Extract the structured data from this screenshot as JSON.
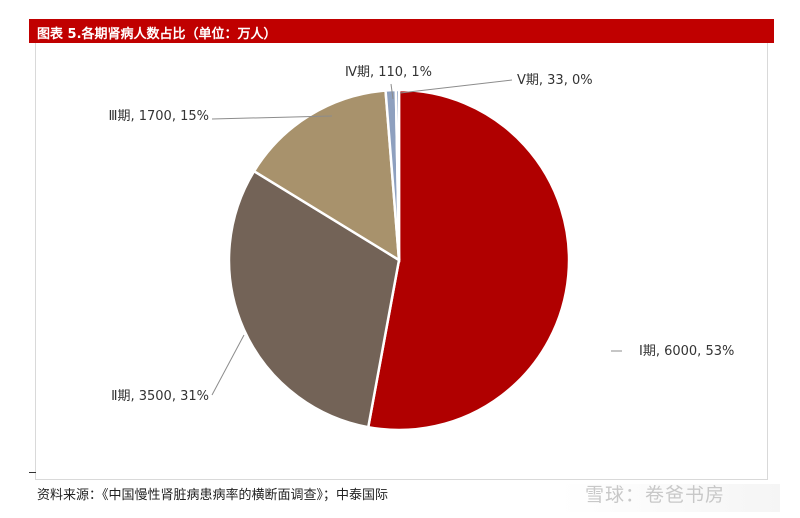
{
  "header": {
    "title": "图表 5.各期肾病人数占比（单位：万人）"
  },
  "chart_data": {
    "type": "pie",
    "title": "图表 5.各期肾病人数占比（单位：万人）",
    "slices": [
      {
        "name": "Ⅰ期",
        "value": 6000,
        "percent": "53%",
        "label": "Ⅰ期, 6000, 53%",
        "color": "#b00000"
      },
      {
        "name": "Ⅱ期",
        "value": 3500,
        "percent": "31%",
        "label": "Ⅱ期, 3500, 31%",
        "color": "#736357"
      },
      {
        "name": "Ⅲ期",
        "value": 1700,
        "percent": "15%",
        "label": "Ⅲ期, 1700, 15%",
        "color": "#a8926c"
      },
      {
        "name": "Ⅳ期",
        "value": 110,
        "percent": "1%",
        "label": "Ⅳ期, 110, 1%",
        "color": "#8ea0bf"
      },
      {
        "name": "Ⅴ期",
        "value": 33,
        "percent": "0%",
        "label": "Ⅴ期, 33, 0%",
        "color": "#5b7aa8"
      }
    ]
  },
  "footer": {
    "source": "资料来源：《中国慢性肾脏病患病率的横断面调查》；中泰国际",
    "watermark": "雪球：卷爸书房"
  }
}
